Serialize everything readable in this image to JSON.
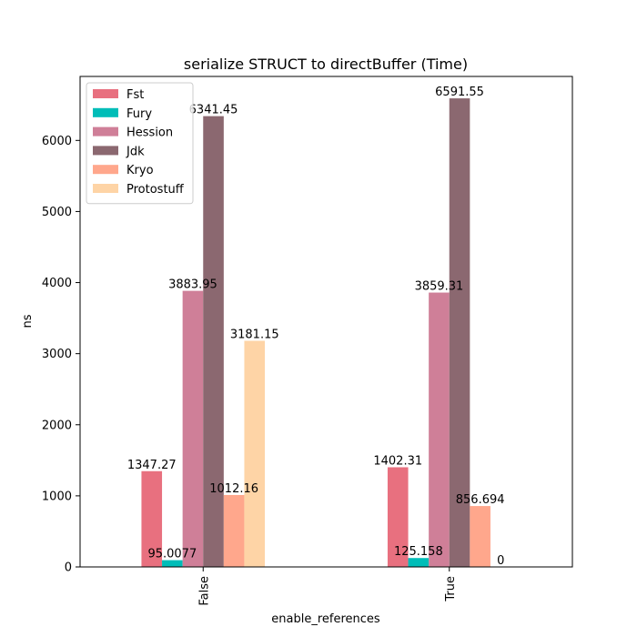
{
  "chart_data": {
    "type": "bar",
    "title": "serialize STRUCT to directBuffer (Time)",
    "xlabel": "enable_references",
    "ylabel": "ns",
    "ylim": [
      0,
      6900
    ],
    "yticks": [
      0,
      1000,
      2000,
      3000,
      4000,
      5000,
      6000
    ],
    "categories": [
      "False",
      "True"
    ],
    "legend_position": "top-left",
    "grid": false,
    "series": [
      {
        "name": "Fst",
        "color": "#e8707f",
        "values": [
          1347.27,
          1402.31
        ],
        "labels": [
          "1347.27",
          "1402.31"
        ]
      },
      {
        "name": "Fury",
        "color": "#00bdb8",
        "values": [
          95.0077,
          125.158
        ],
        "labels": [
          "95.0077",
          "125.158"
        ]
      },
      {
        "name": "Hession",
        "color": "#cf7f98",
        "values": [
          3883.95,
          3859.31
        ],
        "labels": [
          "3883.95",
          "3859.31"
        ]
      },
      {
        "name": "Jdk",
        "color": "#8b6870",
        "values": [
          6341.45,
          6591.55
        ],
        "labels": [
          "6341.45",
          "6591.55"
        ]
      },
      {
        "name": "Kryo",
        "color": "#ffa78c",
        "values": [
          1012.16,
          856.694
        ],
        "labels": [
          "1012.16",
          "856.694"
        ]
      },
      {
        "name": "Protostuff",
        "color": "#fed4a6",
        "values": [
          3181.15,
          0
        ],
        "labels": [
          "3181.15",
          "0"
        ]
      }
    ]
  }
}
